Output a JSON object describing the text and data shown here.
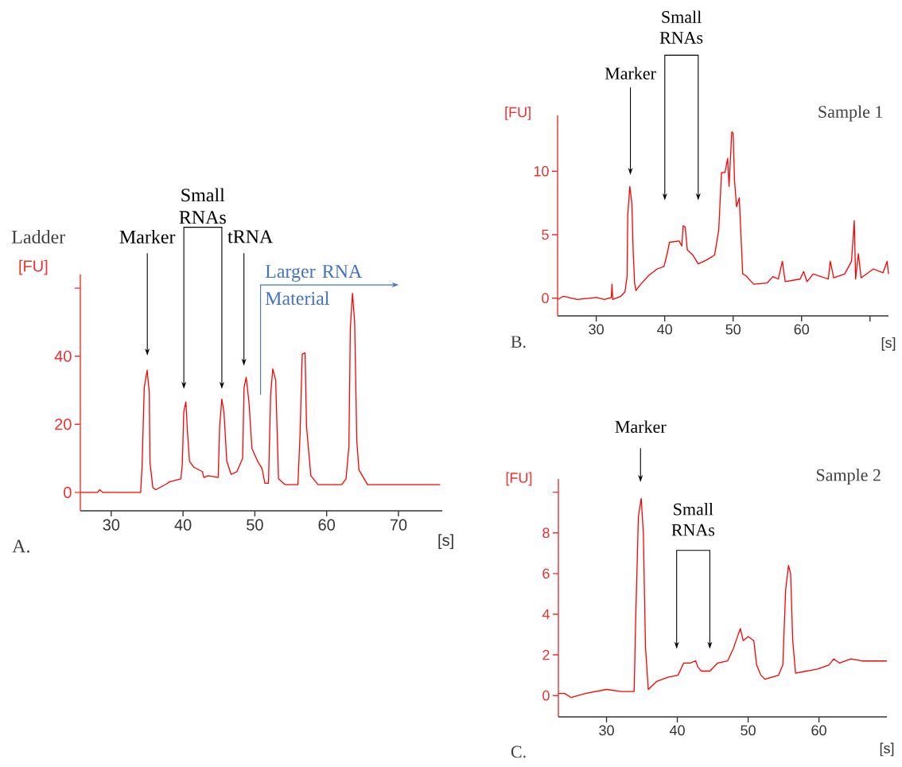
{
  "chart_data": [
    {
      "type": "line",
      "xlabel": "[s]",
      "ylabel": "[FU]",
      "color": "#ff0000",
      "xlim": [
        25.7,
        76.1
      ],
      "ylim": [
        -5.4,
        64
      ],
      "xticks": [
        30,
        40,
        50,
        60,
        70
      ],
      "yticks": [
        0,
        20,
        40,
        {
          "value": 60,
          "label": null
        }
      ],
      "x": [
        25.7,
        28.1,
        28.4,
        28.8,
        34.1,
        34.3,
        34.6,
        35.0,
        35.3,
        35.4,
        35.8,
        36.2,
        37.7,
        38.1,
        39.7,
        39.9,
        40.1,
        40.4,
        40.6,
        40.9,
        41.5,
        42.7,
        42.9,
        43.5,
        44.9,
        45.1,
        45.4,
        45.7,
        46.1,
        46.7,
        47.5,
        48.3,
        48.5,
        48.8,
        49.2,
        49.6,
        50.4,
        51.0,
        51.4,
        51.9,
        52.2,
        52.5,
        52.9,
        53.3,
        54.2,
        56.0,
        56.3,
        56.6,
        57.0,
        57.2,
        57.8,
        58.8,
        62.1,
        62.7,
        63.1,
        63.3,
        63.6,
        63.9,
        64.2,
        64.5,
        65.7,
        67.1,
        75.8
      ],
      "values": [
        0,
        0,
        0.8,
        0,
        0,
        7.8,
        30.8,
        35.9,
        29.5,
        8.7,
        1.4,
        0.8,
        2.5,
        3.1,
        4.0,
        8.3,
        23.6,
        26.6,
        18.5,
        9.1,
        7.4,
        6.1,
        4.4,
        4.9,
        4.4,
        19.3,
        27.4,
        23.6,
        9.1,
        5.3,
        6.1,
        10,
        30.8,
        33.8,
        26.1,
        12.9,
        9.1,
        7.0,
        2.7,
        2.7,
        28.7,
        36.3,
        33.0,
        4.0,
        2.3,
        2.3,
        17.2,
        40.6,
        41.0,
        19.3,
        4.9,
        2.3,
        2.3,
        4.0,
        13.4,
        48.3,
        58.5,
        50,
        15.1,
        6.6,
        2.3,
        2.3,
        2.3
      ],
      "annotations": [
        "A.",
        "Ladder",
        "Marker",
        "Small RNAs",
        "tRNA",
        "Larger RNA Material"
      ]
    },
    {
      "type": "line",
      "xlabel": "[s]",
      "ylabel": "[FU]",
      "color": "#ff0000",
      "xlim": [
        24.35,
        72.7
      ],
      "ylim": [
        -1.4,
        14.4
      ],
      "xticks": [
        30,
        40,
        50,
        60,
        {
          "value": 70,
          "label": null
        }
      ],
      "yticks": [
        0,
        5,
        10
      ],
      "x": [
        24.4,
        25.2,
        27.2,
        30,
        31.2,
        32.2,
        32.3,
        32.4,
        33.6,
        34.2,
        34.5,
        34.6,
        34.9,
        35.2,
        35.4,
        35.6,
        35.8,
        36.5,
        37.7,
        38.9,
        39.9,
        40.4,
        40.7,
        42.1,
        42.5,
        42.7,
        43.0,
        43.3,
        44.1,
        44.9,
        46.1,
        47.3,
        47.9,
        48.3,
        48.8,
        49.2,
        49.4,
        49.8,
        50.0,
        50.2,
        50.5,
        50.9,
        51.4,
        51.8,
        53.0,
        55.0,
        55.8,
        56.6,
        57.2,
        57.6,
        59.8,
        60.3,
        60.8,
        61.7,
        63.9,
        64.2,
        64.7,
        66.3,
        67.3,
        67.7,
        67.9,
        68.3,
        68.7,
        70.5,
        71.9,
        72.5,
        72.7
      ],
      "values": [
        -0.1,
        0.15,
        -0.1,
        0.05,
        -0.1,
        0.05,
        1.1,
        -0.1,
        0.15,
        0.5,
        1.7,
        6.5,
        8.8,
        7.5,
        3.6,
        1.2,
        0.6,
        1.1,
        1.8,
        2.3,
        2.5,
        3.6,
        4.4,
        4.5,
        4.1,
        5.7,
        5.6,
        3.8,
        3.4,
        2.7,
        3.0,
        3.4,
        5.4,
        9.9,
        9.9,
        11.0,
        8.8,
        13.1,
        13.0,
        9.3,
        7.2,
        7.9,
        1.9,
        1.8,
        1.1,
        1.2,
        1.7,
        1.5,
        2.9,
        1.3,
        1.5,
        2.1,
        1.3,
        1.9,
        1.5,
        2.9,
        1.6,
        1.9,
        2.9,
        6.1,
        1.5,
        3.5,
        1.6,
        2.3,
        2.0,
        2.9,
        1.9
      ],
      "annotations": [
        "B.",
        "Sample 1",
        "Marker",
        "Small RNAs"
      ]
    },
    {
      "type": "line",
      "xlabel": "[s]",
      "ylabel": "[FU]",
      "color": "#ff0000",
      "xlim": [
        23.2,
        69.6
      ],
      "ylim": [
        -1.05,
        10.65
      ],
      "xticks": [
        30,
        40,
        50,
        60
      ],
      "yticks": [
        0,
        2,
        4,
        6,
        8,
        {
          "value": 10,
          "label": null
        }
      ],
      "x": [
        23.2,
        24.1,
        25.0,
        27.0,
        30,
        32.1,
        33.9,
        34.1,
        34.5,
        34.9,
        35.2,
        35.5,
        35.9,
        37.1,
        38.7,
        40.1,
        40.9,
        41.8,
        42.6,
        42.9,
        43.4,
        44.6,
        45.7,
        47.1,
        47.9,
        48.9,
        49.3,
        50.0,
        50.8,
        51.2,
        51.8,
        52.4,
        54.3,
        54.9,
        55.3,
        55.7,
        56.0,
        56.3,
        56.7,
        58.2,
        59.8,
        61.4,
        62.1,
        62.9,
        64.5,
        66.1,
        68.4,
        69.6
      ],
      "values": [
        0.1,
        0.1,
        -0.1,
        0.1,
        0.3,
        0.2,
        0.2,
        3.5,
        8.8,
        9.7,
        8.0,
        2.4,
        0.3,
        0.7,
        0.9,
        1.0,
        1.6,
        1.6,
        1.7,
        1.4,
        1.2,
        1.2,
        1.6,
        1.7,
        2.3,
        3.3,
        2.7,
        2.9,
        2.7,
        1.5,
        1.0,
        0.8,
        1.0,
        1.5,
        5.2,
        6.4,
        6.0,
        2.7,
        1.1,
        1.2,
        1.3,
        1.5,
        1.8,
        1.6,
        1.8,
        1.7,
        1.7,
        1.7
      ],
      "annotations": [
        "C.",
        "Sample 2",
        "Marker",
        "Small RNAs"
      ]
    }
  ]
}
